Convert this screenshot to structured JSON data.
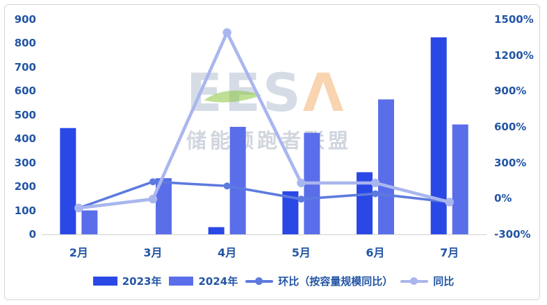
{
  "page": {
    "background": "#ffffff",
    "frame_border_color": "#d5d5d5"
  },
  "watermark": {
    "logo_gray": "EES",
    "logo_accent": "Λ",
    "subtitle": "储能领跑者联盟",
    "leaf_color": "#8cc63f",
    "logo_gray_color": "#b9c5d6",
    "logo_accent_color": "#f2a65a"
  },
  "chart_data": {
    "type": "combo-bar-line",
    "title": "",
    "categories": [
      "2月",
      "3月",
      "4月",
      "5月",
      "6月",
      "7月"
    ],
    "series": [
      {
        "name": "2023年",
        "type": "bar",
        "axis": "left",
        "color": "#2a48e6",
        "values": [
          445,
          null,
          30,
          180,
          260,
          825
        ]
      },
      {
        "name": "2024年",
        "type": "bar",
        "axis": "left",
        "color": "#5a6eea",
        "values": [
          100,
          235,
          450,
          425,
          565,
          460
        ]
      },
      {
        "name": "环比（按容量规模同比）",
        "type": "line",
        "axis": "right",
        "unit": "%",
        "color": "#5d7ade",
        "values": [
          -80,
          140,
          105,
          -5,
          40,
          -30
        ]
      },
      {
        "name": "同比",
        "type": "line",
        "axis": "right",
        "unit": "%",
        "color": "#a9b6ee",
        "values": [
          -80,
          -5,
          1390,
          130,
          130,
          -30
        ]
      }
    ],
    "left_axis": {
      "min": 0,
      "max": 900,
      "step": 100,
      "tick_labels": [
        "0",
        "100",
        "200",
        "300",
        "400",
        "500",
        "600",
        "700",
        "800",
        "900"
      ]
    },
    "right_axis": {
      "min": -300,
      "max": 1500,
      "step": 300,
      "tick_labels": [
        "-300%",
        "0%",
        "300%",
        "600%",
        "900%",
        "1200%",
        "1500%"
      ]
    },
    "legend_position": "bottom",
    "grid": false,
    "axis_text_color": "#2355a4",
    "axis_line_color": "#d6d6d6"
  }
}
